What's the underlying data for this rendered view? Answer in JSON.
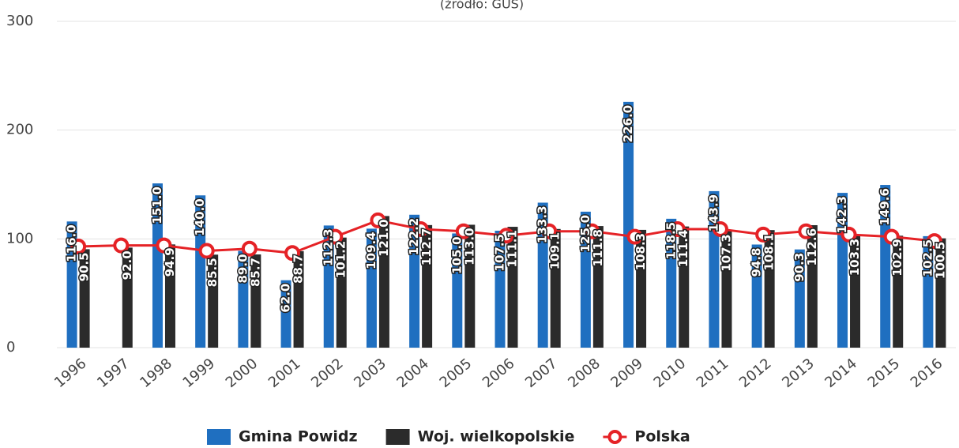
{
  "chart_data": {
    "type": "bar",
    "subtitle": "(źródło: GUS)",
    "categories": [
      "1996",
      "1997",
      "1998",
      "1999",
      "2000",
      "2001",
      "2002",
      "2003",
      "2004",
      "2005",
      "2006",
      "2007",
      "2008",
      "2009",
      "2010",
      "2011",
      "2012",
      "2013",
      "2014",
      "2015",
      "2016"
    ],
    "series": [
      {
        "name": "Gmina Powidz",
        "color": "#1f6fc0",
        "values": [
          116.0,
          null,
          151.0,
          140.0,
          89.0,
          62.0,
          112.3,
          109.4,
          122.2,
          105.0,
          107.5,
          133.3,
          125.0,
          226.0,
          118.5,
          143.9,
          94.8,
          90.3,
          142.3,
          149.6,
          102.5
        ],
        "value_labels": [
          "116.0",
          null,
          "151.0",
          "140.0",
          "89.0",
          "62.0",
          "112.3",
          "109.4",
          "122.2",
          "105.0",
          "107.5",
          "133.3",
          "125.0",
          "226.0",
          "118.5",
          "143.9",
          "94.8",
          "90.3",
          "142.3",
          "149.6",
          "102.5"
        ]
      },
      {
        "name": "Woj. wielkopolskie",
        "color": "#2b2b2b",
        "values": [
          90.5,
          92.0,
          94.9,
          85.5,
          85.7,
          88.7,
          101.2,
          121.0,
          112.7,
          113.0,
          111.1,
          109.1,
          111.8,
          108.3,
          111.4,
          107.3,
          108.1,
          112.6,
          103.3,
          102.9,
          100.5
        ],
        "value_labels": [
          "90.5",
          "92.0",
          "94.9",
          "85.5",
          "85.7",
          "88.7",
          "101.2",
          "121.0",
          "112.7",
          "113.0",
          "111.1",
          "109.1",
          "111.8",
          "108.3",
          "111.4",
          "107.3",
          "108.1",
          "112.6",
          "103.3",
          "102.9",
          "100.5"
        ]
      },
      {
        "name": "Polska",
        "color": "#e52226",
        "type": "line",
        "values": [
          93,
          94,
          94,
          89,
          91,
          87,
          102,
          117,
          109,
          107,
          103,
          107,
          107,
          102,
          109,
          109,
          104,
          107,
          104,
          102,
          98
        ]
      }
    ],
    "ylim": [
      0,
      300
    ],
    "yticks": [
      0,
      100,
      200,
      300
    ],
    "grid": true
  }
}
